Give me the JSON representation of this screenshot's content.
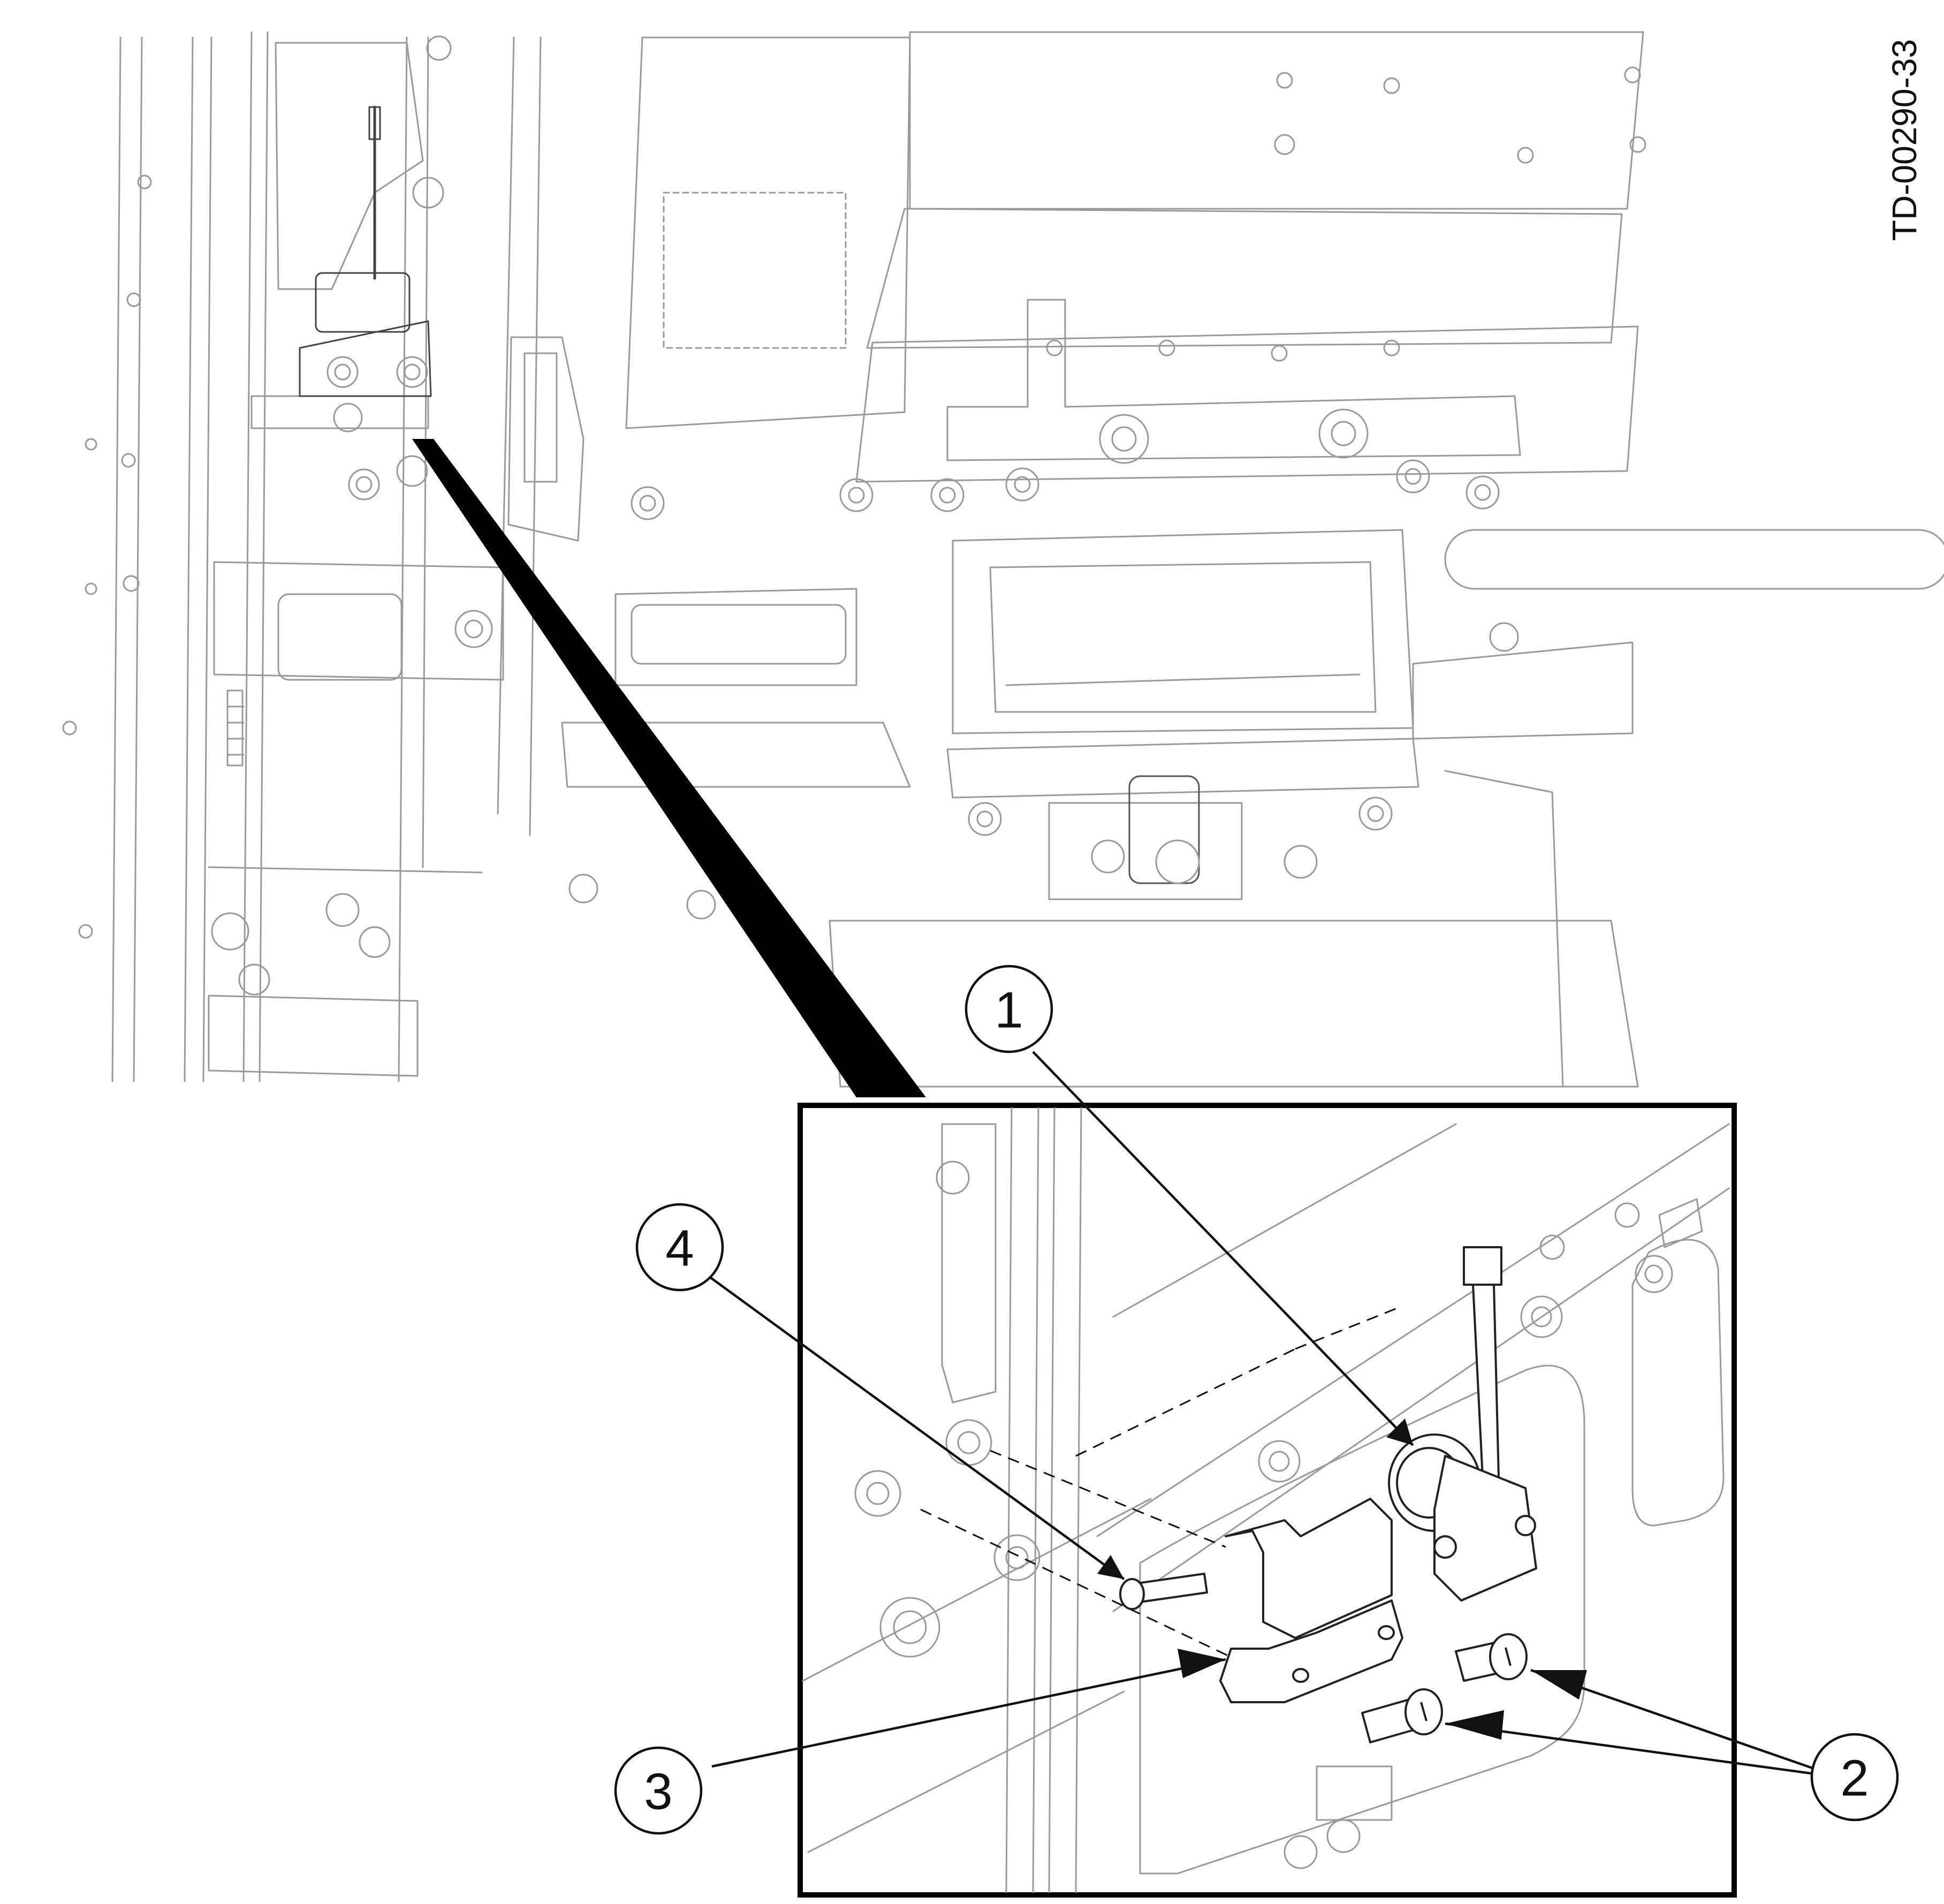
{
  "figure": {
    "document_id": "TD-00290-33"
  },
  "callouts": [
    {
      "id": "1",
      "label": "1"
    },
    {
      "id": "2",
      "label": "2"
    },
    {
      "id": "3",
      "label": "3"
    },
    {
      "id": "4",
      "label": "4"
    }
  ],
  "colors": {
    "line_art": "#9a9a9a",
    "ink": "#111111",
    "background": "#ffffff"
  }
}
